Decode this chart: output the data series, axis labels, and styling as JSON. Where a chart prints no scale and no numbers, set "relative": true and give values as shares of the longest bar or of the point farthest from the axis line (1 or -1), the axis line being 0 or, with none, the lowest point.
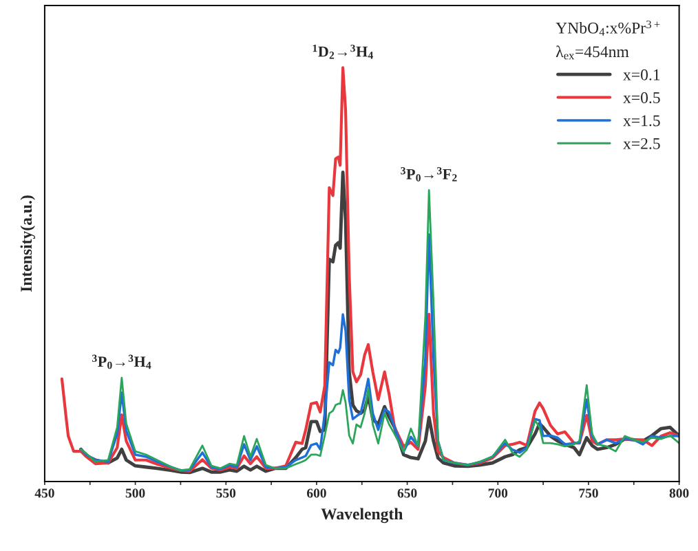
{
  "chart_data": {
    "type": "line",
    "relative": true,
    "xlabel": "Wavelength",
    "ylabel": "Intensity(a.u.)",
    "legend_title": "YNbO$_{4}$:x%Pr$^{3+}$",
    "legend": "top right",
    "grid": false,
    "xlim": [
      450,
      800
    ],
    "xticks": [
      450,
      {
        "value": 475,
        "label": null
      },
      500,
      {
        "value": 525,
        "label": null
      },
      550,
      {
        "value": 575,
        "label": null
      },
      600,
      {
        "value": 625,
        "label": null
      },
      650,
      {
        "value": 675,
        "label": null
      },
      700,
      {
        "value": 725,
        "label": null
      },
      750,
      {
        "value": 775,
        "label": null
      },
      800
    ],
    "annotations": [
      "λ$_{ex}$=454nm",
      {
        "text": "$^{3}$P$_{0}$→$^{3}$H$_{4}$",
        "x": 492.5,
        "y": 0.251
      },
      {
        "text": "$^{1}$D$_{2}$→$^{3}$H$_{4}$",
        "x": 614.5,
        "y": 1.0
      },
      {
        "text": "$^{3}$P$_{0}$→$^{3}$F$_{2}$",
        "x": 662,
        "y": 0.704
      }
    ],
    "x": [
      470,
      473,
      478,
      485,
      490,
      492.5,
      495,
      500,
      506,
      512,
      520,
      525,
      530,
      537,
      542,
      547,
      552,
      556,
      560,
      563.5,
      567,
      572,
      577,
      583,
      588.5,
      592,
      594,
      597,
      600,
      602,
      604.5,
      607,
      609,
      610.5,
      612,
      613,
      614.5,
      616,
      618,
      620,
      622,
      624.3,
      626.5,
      628.5,
      631,
      634,
      637.5,
      640,
      643,
      648,
      652,
      656,
      660,
      662,
      664.5,
      667,
      670,
      676,
      683.5,
      690,
      697,
      704,
      708,
      712,
      716,
      720.5,
      723,
      725,
      729,
      733,
      737,
      742,
      745,
      749,
      752,
      755,
      760,
      765,
      770,
      775,
      780,
      785,
      790,
      795,
      800
    ],
    "series": [
      {
        "name": "x=0.1",
        "color": "#404040",
        "values": [
          0.078,
          0.062,
          0.052,
          0.045,
          0.057,
          0.078,
          0.052,
          0.038,
          0.035,
          0.032,
          0.027,
          0.023,
          0.022,
          0.032,
          0.023,
          0.023,
          0.028,
          0.025,
          0.037,
          0.028,
          0.037,
          0.025,
          0.032,
          0.032,
          0.058,
          0.078,
          0.082,
          0.145,
          0.145,
          0.121,
          0.125,
          0.537,
          0.531,
          0.571,
          0.577,
          0.564,
          0.747,
          0.631,
          0.265,
          0.185,
          0.171,
          0.165,
          0.173,
          0.208,
          0.151,
          0.138,
          0.181,
          0.156,
          0.131,
          0.065,
          0.058,
          0.055,
          0.098,
          0.155,
          0.098,
          0.057,
          0.045,
          0.038,
          0.037,
          0.04,
          0.045,
          0.06,
          0.065,
          0.077,
          0.082,
          0.115,
          0.14,
          0.131,
          0.11,
          0.098,
          0.09,
          0.082,
          0.065,
          0.106,
          0.087,
          0.078,
          0.082,
          0.09,
          0.103,
          0.101,
          0.098,
          0.111,
          0.128,
          0.131,
          0.11
        ]
      },
      {
        "name": "x=0.5",
        "color": "#e8383d",
        "x": [
          459.5,
          462,
          463,
          466,
          469,
          470,
          473,
          478,
          485,
          490,
          492.5,
          495,
          500,
          506,
          512,
          520,
          525,
          530,
          537,
          542,
          547,
          552,
          556,
          560,
          563.5,
          567,
          572,
          577,
          583,
          588.5,
          592,
          594,
          597,
          600,
          602,
          604.5,
          607,
          609,
          610.5,
          612,
          613,
          614.5,
          616,
          618,
          620,
          622,
          624.3,
          626.5,
          628.5,
          631,
          634,
          637.5,
          640,
          643,
          648,
          652,
          656,
          660,
          662,
          664.5,
          667,
          670,
          676,
          683.5,
          690,
          697,
          704,
          708,
          712,
          716,
          720.5,
          723,
          725,
          729,
          733,
          737,
          742,
          745,
          749,
          752,
          755,
          760,
          765,
          770,
          775,
          780,
          785,
          790,
          795,
          800
        ],
        "values": [
          0.248,
          0.148,
          0.11,
          0.073,
          0.073,
          0.073,
          0.06,
          0.043,
          0.045,
          0.082,
          0.161,
          0.098,
          0.052,
          0.052,
          0.042,
          0.032,
          0.027,
          0.025,
          0.053,
          0.032,
          0.028,
          0.035,
          0.032,
          0.062,
          0.043,
          0.06,
          0.032,
          0.032,
          0.038,
          0.095,
          0.092,
          0.125,
          0.188,
          0.191,
          0.168,
          0.231,
          0.71,
          0.691,
          0.78,
          0.784,
          0.764,
          1.0,
          0.897,
          0.498,
          0.265,
          0.241,
          0.258,
          0.306,
          0.331,
          0.265,
          0.198,
          0.265,
          0.211,
          0.131,
          0.085,
          0.095,
          0.078,
          0.231,
          0.404,
          0.165,
          0.073,
          0.058,
          0.045,
          0.04,
          0.045,
          0.057,
          0.087,
          0.09,
          0.095,
          0.087,
          0.17,
          0.19,
          0.176,
          0.136,
          0.115,
          0.12,
          0.093,
          0.093,
          0.16,
          0.098,
          0.09,
          0.101,
          0.101,
          0.103,
          0.101,
          0.101,
          0.087,
          0.11,
          0.118,
          0.11
        ]
      },
      {
        "name": "x=1.5",
        "color": "#1f6fd8",
        "values": [
          0.078,
          0.065,
          0.052,
          0.048,
          0.115,
          0.215,
          0.123,
          0.065,
          0.06,
          0.048,
          0.035,
          0.027,
          0.028,
          0.07,
          0.035,
          0.03,
          0.04,
          0.035,
          0.09,
          0.052,
          0.085,
          0.035,
          0.032,
          0.035,
          0.052,
          0.058,
          0.062,
          0.088,
          0.092,
          0.078,
          0.165,
          0.288,
          0.281,
          0.318,
          0.311,
          0.323,
          0.404,
          0.364,
          0.198,
          0.151,
          0.158,
          0.165,
          0.206,
          0.248,
          0.165,
          0.125,
          0.175,
          0.168,
          0.131,
          0.072,
          0.108,
          0.085,
          0.298,
          0.597,
          0.298,
          0.098,
          0.052,
          0.045,
          0.04,
          0.047,
          0.06,
          0.093,
          0.077,
          0.07,
          0.082,
          0.151,
          0.148,
          0.11,
          0.111,
          0.106,
          0.09,
          0.093,
          0.093,
          0.198,
          0.11,
          0.09,
          0.101,
          0.093,
          0.103,
          0.101,
          0.09,
          0.11,
          0.106,
          0.11,
          0.11
        ]
      },
      {
        "name": "x=2.5",
        "color": "#2aa55a",
        "values": [
          0.078,
          0.068,
          0.048,
          0.052,
          0.131,
          0.251,
          0.14,
          0.073,
          0.065,
          0.052,
          0.035,
          0.027,
          0.03,
          0.087,
          0.038,
          0.032,
          0.043,
          0.04,
          0.11,
          0.06,
          0.103,
          0.04,
          0.032,
          0.032,
          0.042,
          0.048,
          0.052,
          0.065,
          0.065,
          0.062,
          0.111,
          0.165,
          0.171,
          0.185,
          0.188,
          0.188,
          0.221,
          0.191,
          0.111,
          0.092,
          0.138,
          0.131,
          0.165,
          0.225,
          0.138,
          0.092,
          0.165,
          0.138,
          0.115,
          0.072,
          0.128,
          0.085,
          0.398,
          0.704,
          0.431,
          0.098,
          0.052,
          0.045,
          0.04,
          0.048,
          0.06,
          0.101,
          0.07,
          0.06,
          0.077,
          0.148,
          0.131,
          0.093,
          0.093,
          0.09,
          0.085,
          0.09,
          0.098,
          0.233,
          0.115,
          0.09,
          0.085,
          0.073,
          0.11,
          0.101,
          0.095,
          0.106,
          0.103,
          0.111,
          0.093
        ]
      }
    ]
  }
}
